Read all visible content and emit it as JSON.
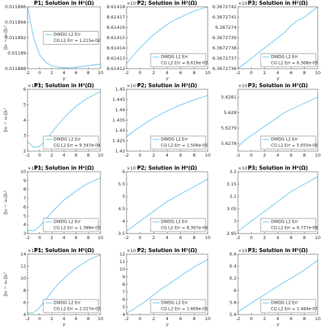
{
  "chart_data": [
    {
      "type": "line",
      "title": "P1; Solution in H²(Ω)",
      "ylabel": "||u − uₕ||L²",
      "xlabel": "γ",
      "x": [
        -2,
        -1,
        0,
        1,
        2,
        3,
        4,
        5,
        6,
        7,
        8,
        9,
        10
      ],
      "xlim": [
        -2,
        10
      ],
      "xticks": [
        -2,
        0,
        2,
        4,
        6,
        8,
        10
      ],
      "ylim": [
        0.011888,
        0.011896
      ],
      "yticks": [
        0.011888,
        0.01189,
        0.011892,
        0.011894,
        0.011896
      ],
      "legend": "east",
      "annotation": "CG L2 Err = 1.215e-02",
      "series": [
        {
          "name": "DWDG L2 Err",
          "color": "#4dbeee",
          "values": [
            0.011896,
            0.011892,
            0.0118898,
            0.0118888,
            0.0118884,
            0.0118882,
            0.0118881,
            0.0118881,
            0.0118882,
            0.0118883,
            0.0118884,
            0.0118885,
            0.0118886
          ]
        }
      ]
    },
    {
      "type": "line",
      "title": "P2; Solution in H²(Ω)",
      "multiplier": "×10⁻³",
      "xlabel": "γ",
      "x": [
        -2,
        -1,
        0,
        1,
        2,
        3,
        4,
        5,
        6,
        7,
        8,
        9,
        10
      ],
      "xlim": [
        -2,
        10
      ],
      "xticks": [
        -2,
        0,
        2,
        4,
        6,
        8,
        10
      ],
      "ylim": [
        8.61412,
        8.61418
      ],
      "yticks": [
        8.61412,
        8.61413,
        8.61414,
        8.61415,
        8.61416,
        8.61417,
        8.61418
      ],
      "legend": "southeast",
      "annotation": "CG L2 Err = 8.616e-03",
      "series": [
        {
          "name": "DWDG L2 Err",
          "color": "#4dbeee",
          "values": [
            8.614125,
            8.614133,
            8.61414,
            8.614147,
            8.614153,
            8.614158,
            8.614163,
            8.614167,
            8.61417,
            8.614173,
            8.614176,
            8.614178,
            8.61418
          ]
        }
      ]
    },
    {
      "type": "line",
      "title": "P3; Solution in H²(Ω)",
      "multiplier": "×10⁻³",
      "xlabel": "γ",
      "x": [
        -2,
        -1,
        0,
        1,
        2,
        3,
        4,
        5,
        6,
        7,
        8,
        9,
        10
      ],
      "xlim": [
        -2,
        10
      ],
      "xticks": [
        -2,
        0,
        2,
        4,
        6,
        8,
        10
      ],
      "ylim": [
        6.3672736,
        6.3672742
      ],
      "yticks": [
        6.3672736,
        6.3672737,
        6.3672738,
        6.3672739,
        6.367274,
        6.3672741,
        6.3672742
      ],
      "legend": "southeast",
      "annotation": "CG L2 Err = 6.368e-03",
      "series": [
        {
          "name": "DWDG L2 Err",
          "color": "#4dbeee",
          "values": [
            6.3672736,
            6.36727365,
            6.3672737,
            6.36727375,
            6.3672738,
            6.36727385,
            6.3672739,
            6.36727395,
            6.36727402,
            6.36727407,
            6.3672741,
            6.36727415,
            6.3672742
          ]
        }
      ]
    },
    {
      "type": "line",
      "title": "P1; Solution in H³(Ω)",
      "multiplier": "×10⁻⁴",
      "ylabel": "||u − uₕ||L²",
      "x": [
        -2,
        -1,
        0,
        1,
        2,
        3,
        4,
        5,
        6,
        7,
        8,
        9,
        10
      ],
      "xlim": [
        -2,
        10
      ],
      "xticks": [
        -2,
        0,
        2,
        4,
        6,
        8,
        10
      ],
      "ylim": [
        2,
        6
      ],
      "yticks": [
        2,
        3,
        4,
        5,
        6
      ],
      "legend": "southeast",
      "annotation": "CG L2 Err = 9.347e-04",
      "series": [
        {
          "name": "DWDG L2 Err",
          "color": "#4dbeee",
          "values": [
            2.6,
            2.25,
            2.3,
            2.7,
            3.2,
            3.7,
            4.15,
            4.55,
            4.9,
            5.2,
            5.45,
            5.65,
            5.85
          ]
        }
      ]
    },
    {
      "type": "line",
      "title": "P2; Solution in H³(Ω)",
      "multiplier": "×10⁻⁵",
      "x": [
        -2,
        -1,
        0,
        1,
        2,
        3,
        4,
        5,
        6,
        7,
        8,
        9,
        10
      ],
      "xlim": [
        -2,
        10
      ],
      "xticks": [
        -2,
        0,
        2,
        4,
        6,
        8,
        10
      ],
      "ylim": [
        1.42,
        1.45
      ],
      "yticks": [
        1.42,
        1.425,
        1.43,
        1.435,
        1.44,
        1.445,
        1.45
      ],
      "legend": "southeast",
      "annotation": "CG L2 Err = 1.506e-05",
      "series": [
        {
          "name": "DWDG L2 Err",
          "color": "#4dbeee",
          "values": [
            1.427,
            1.4295,
            1.4318,
            1.434,
            1.436,
            1.4378,
            1.4395,
            1.441,
            1.4424,
            1.4437,
            1.4449,
            1.446,
            1.447
          ]
        }
      ]
    },
    {
      "type": "line",
      "title": "P3; Solution in H³(Ω)",
      "multiplier": "×10⁻⁶",
      "x": [
        -2,
        -1,
        0,
        1,
        2,
        3,
        4,
        5,
        6,
        7,
        8,
        9,
        10
      ],
      "xlim": [
        -2,
        10
      ],
      "xticks": [
        -2,
        0,
        2,
        4,
        6,
        8,
        10
      ],
      "ylim": [
        5.62775,
        5.62815
      ],
      "yticks": [
        5.6278,
        5.6279,
        5.628,
        5.6281
      ],
      "legend": "southeast",
      "annotation": "CG L2 Err = 5.655e-06",
      "series": [
        {
          "name": "DWDG L2 Err",
          "color": "#4dbeee",
          "values": [
            5.62778,
            5.62782,
            5.62785,
            5.62788,
            5.62791,
            5.62794,
            5.62797,
            5.628,
            5.62802,
            5.62804,
            5.62806,
            5.62808,
            5.6281
          ]
        }
      ]
    },
    {
      "type": "line",
      "title": "P1; Solution in H⁴(Ω)",
      "multiplier": "×10⁻⁴",
      "ylabel": "||u − uₕ||L²",
      "x": [
        -2,
        -1,
        0,
        1,
        2,
        3,
        4,
        5,
        6,
        7,
        8,
        9,
        10
      ],
      "xlim": [
        -2,
        10
      ],
      "xticks": [
        -2,
        0,
        2,
        4,
        6,
        8,
        10
      ],
      "ylim": [
        3,
        10
      ],
      "yticks": [
        3,
        4,
        5,
        6,
        7,
        8,
        9,
        10
      ],
      "legend": "southeast",
      "annotation": "CG L2 Err = 1.388e-03",
      "series": [
        {
          "name": "DWDG L2 Err",
          "color": "#4dbeee",
          "values": [
            3.4,
            3.3,
            3.8,
            4.6,
            5.4,
            6.1,
            6.8,
            7.3,
            7.8,
            8.3,
            8.7,
            9.0,
            9.3
          ]
        }
      ]
    },
    {
      "type": "line",
      "title": "P2; Solution in H⁴(Ω)",
      "multiplier": "×10⁻⁶",
      "x": [
        -2,
        -1,
        0,
        1,
        2,
        3,
        4,
        5,
        6,
        7,
        8,
        9,
        10
      ],
      "xlim": [
        -2,
        10
      ],
      "xticks": [
        -2,
        0,
        2,
        4,
        6,
        8,
        10
      ],
      "ylim": [
        3.5,
        6
      ],
      "yticks": [
        3.5,
        4,
        4.5,
        5,
        5.5,
        6
      ],
      "legend": "southeast",
      "annotation": "CG L2 Err = 8.367e-06",
      "series": [
        {
          "name": "DWDG L2 Err",
          "color": "#4dbeee",
          "values": [
            3.6,
            3.8,
            4.0,
            4.2,
            4.4,
            4.6,
            4.8,
            4.95,
            5.1,
            5.25,
            5.4,
            5.55,
            5.7
          ]
        }
      ]
    },
    {
      "type": "line",
      "title": "P3; Solution in H⁴(Ω)",
      "multiplier": "×10⁻⁸",
      "x": [
        -2,
        -1,
        0,
        1,
        2,
        3,
        4,
        5,
        6,
        7,
        8,
        9,
        10
      ],
      "xlim": [
        -2,
        10
      ],
      "xticks": [
        -2,
        0,
        2,
        4,
        6,
        8,
        10
      ],
      "ylim": [
        2.95,
        3.2
      ],
      "yticks": [
        2.95,
        3,
        3.05,
        3.1,
        3.15,
        3.2
      ],
      "legend": "southeast",
      "annotation": "CG L2 Err = 6.737e-08",
      "series": [
        {
          "name": "DWDG L2 Err",
          "color": "#4dbeee",
          "values": [
            2.96,
            2.98,
            3.0,
            3.02,
            3.04,
            3.06,
            3.08,
            3.1,
            3.12,
            3.135,
            3.15,
            3.165,
            3.18
          ]
        }
      ]
    },
    {
      "type": "line",
      "title": "P1; Solution in H⁵(Ω)",
      "multiplier": "×10⁻⁴",
      "ylabel": "||u − uₕ||L²",
      "xlabel": "γ",
      "x": [
        -2,
        -1,
        0,
        1,
        2,
        3,
        4,
        5,
        6,
        7,
        8,
        9,
        10
      ],
      "xlim": [
        -2,
        10
      ],
      "xticks": [
        -2,
        0,
        2,
        4,
        6,
        8,
        10
      ],
      "ylim": [
        4,
        14
      ],
      "yticks": [
        4,
        6,
        8,
        10,
        12,
        14
      ],
      "legend": "southeast",
      "annotation": "CG L2 Err = 2.027e-03",
      "series": [
        {
          "name": "DWDG L2 Err",
          "color": "#4dbeee",
          "values": [
            4.3,
            4.3,
            5.2,
            6.5,
            7.8,
            9.0,
            10.0,
            10.9,
            11.7,
            12.4,
            13.0,
            13.5,
            13.9
          ]
        }
      ]
    },
    {
      "type": "line",
      "title": "P2; Solution in H⁵(Ω)",
      "multiplier": "×10⁻⁶",
      "xlabel": "γ",
      "x": [
        -2,
        -1,
        0,
        1,
        2,
        3,
        4,
        5,
        6,
        7,
        8,
        9,
        10
      ],
      "xlim": [
        -2,
        10
      ],
      "xticks": [
        -2,
        0,
        2,
        4,
        6,
        8,
        10
      ],
      "ylim": [
        4,
        12
      ],
      "yticks": [
        4,
        5,
        6,
        7,
        8,
        9,
        10,
        11,
        12
      ],
      "legend": "southeast",
      "annotation": "CG L2 Err = 1.669e-05",
      "series": [
        {
          "name": "DWDG L2 Err",
          "color": "#4dbeee",
          "values": [
            4.2,
            4.7,
            5.3,
            5.9,
            6.6,
            7.3,
            7.9,
            8.5,
            9.1,
            9.7,
            10.3,
            10.8,
            11.3
          ]
        }
      ]
    },
    {
      "type": "line",
      "title": "P3; Solution in H⁵(Ω)",
      "multiplier": "×10⁻⁸",
      "xlabel": "γ",
      "x": [
        -2,
        -1,
        0,
        1,
        2,
        3,
        4,
        5,
        6,
        7,
        8,
        9,
        10
      ],
      "xlim": [
        -2,
        10
      ],
      "xticks": [
        -2,
        0,
        2,
        4,
        6,
        8,
        10
      ],
      "ylim": [
        5.6,
        6.6
      ],
      "yticks": [
        5.6,
        5.8,
        6,
        6.2,
        6.4,
        6.6
      ],
      "legend": "southeast",
      "annotation": "CG L2 Err = 1.484e-07",
      "series": [
        {
          "name": "DWDG L2 Err",
          "color": "#4dbeee",
          "values": [
            5.65,
            5.72,
            5.79,
            5.86,
            5.93,
            6.0,
            6.07,
            6.14,
            6.2,
            6.27,
            6.34,
            6.42,
            6.5
          ]
        }
      ]
    }
  ]
}
